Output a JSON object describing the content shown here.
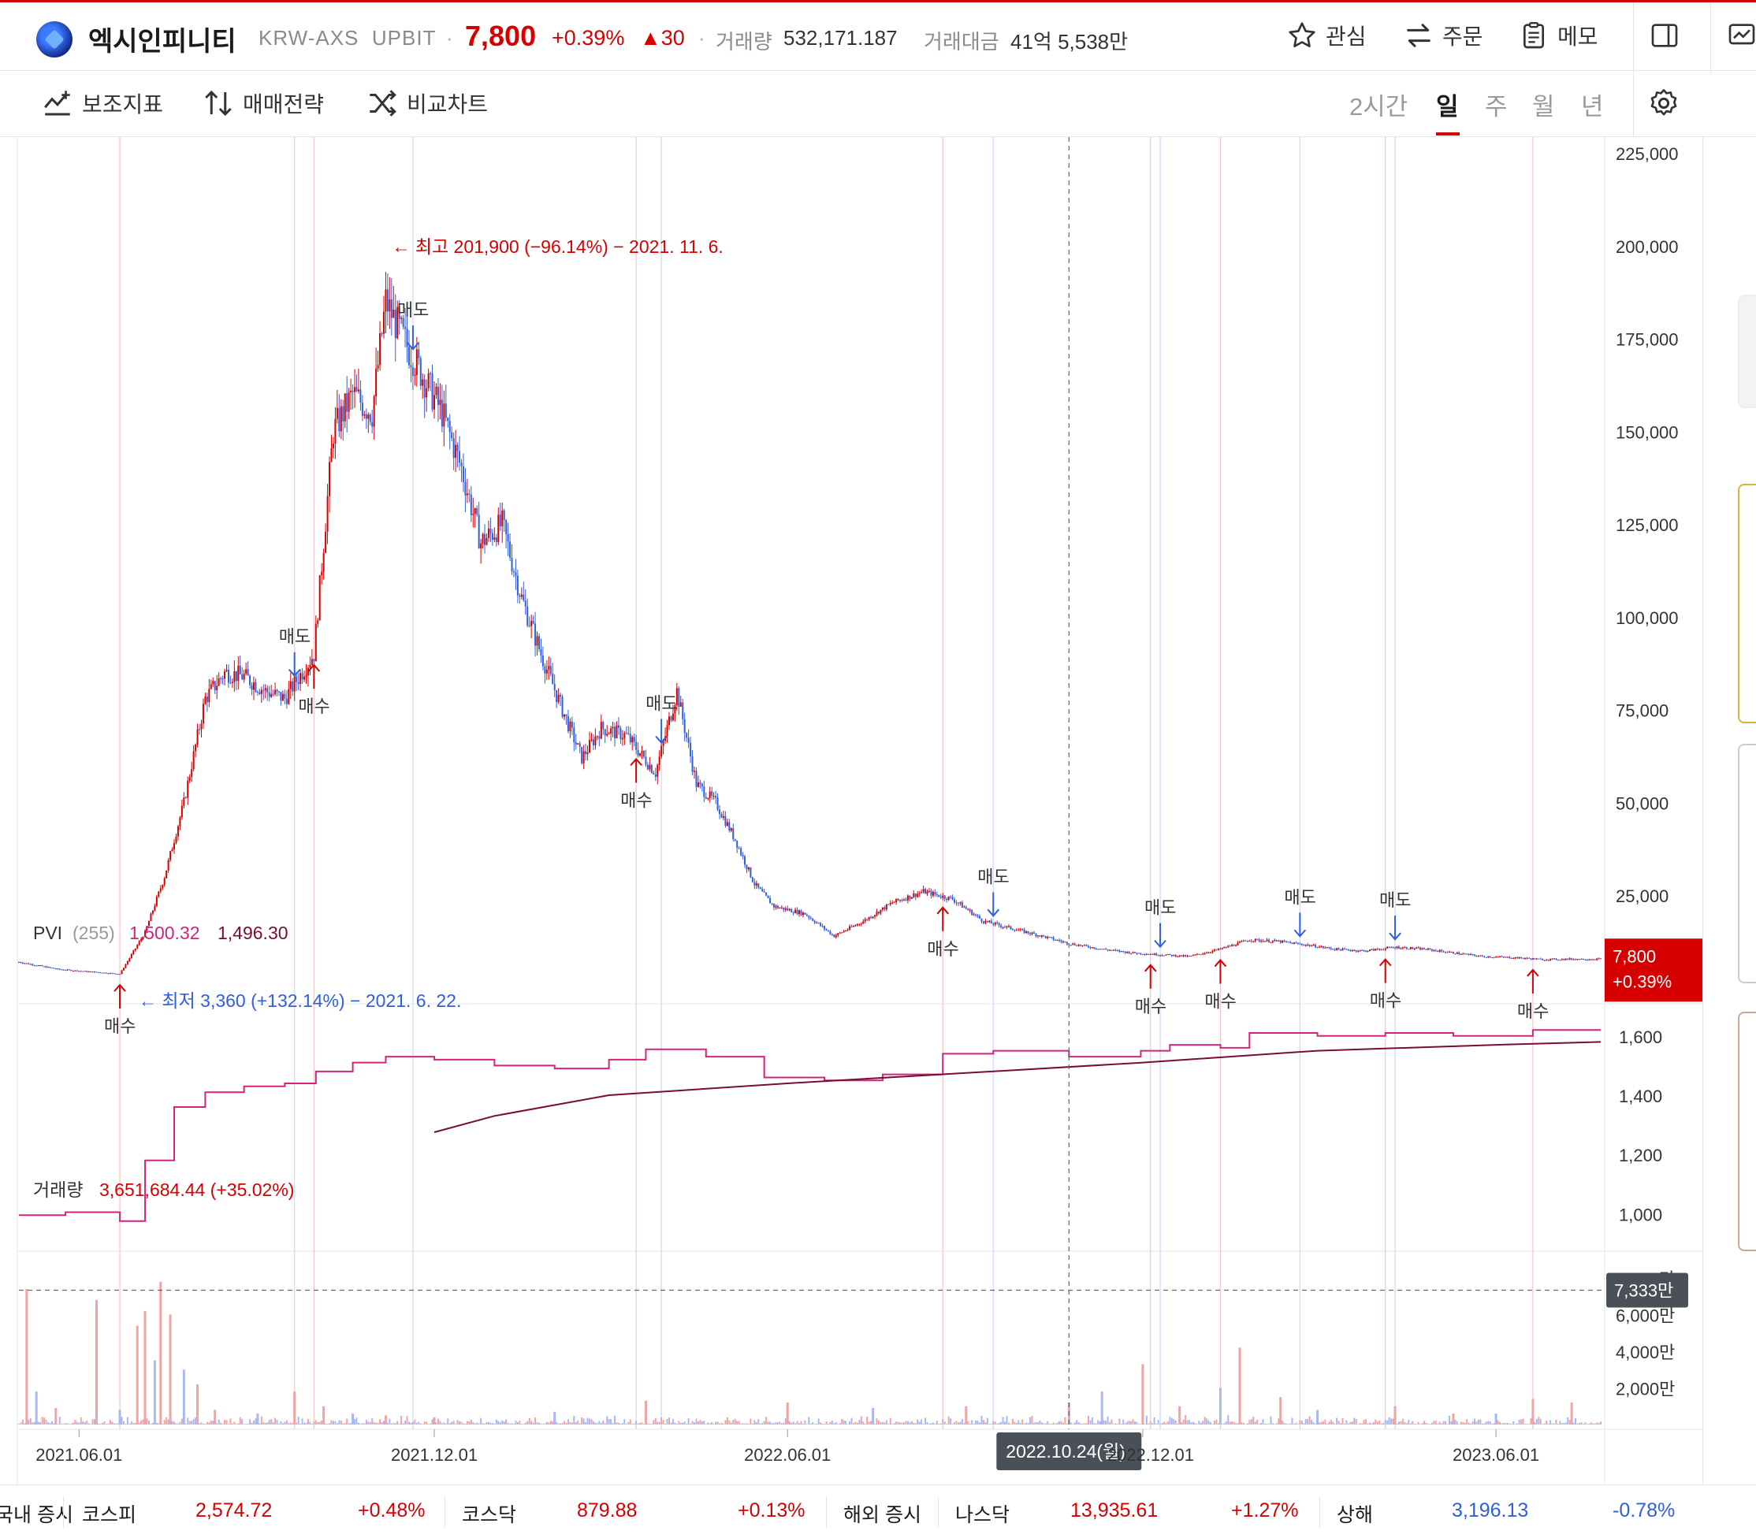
{
  "header": {
    "coin_name": "엑시인피니티",
    "pair": "KRW-AXS",
    "exchange": "UPBIT",
    "separator": "·",
    "price": "7,800",
    "change_pct": "+0.39%",
    "change_amount": "▲30",
    "volume_label": "거래량",
    "volume_value": "532,171.187",
    "value_label": "거래대금",
    "value_value": "41억 5,538만",
    "buttons": {
      "watch": "관심",
      "order": "주문",
      "memo": "메모"
    }
  },
  "toolbar": {
    "indicators": "보조지표",
    "strategy": "매매전략",
    "compare": "비교차트",
    "periods": [
      "2시간",
      "일",
      "주",
      "월",
      "년"
    ],
    "active_period": "일"
  },
  "colors": {
    "up": "#d60000",
    "down": "#2f5fe0",
    "pvi": "#d4237a",
    "pvi_signal": "#7a0a3a",
    "accent": "#d60000"
  },
  "chart_data": [
    {
      "type": "candlestick",
      "panel": "price",
      "x_ticks": [
        "2021.06.01",
        "2021.12.01",
        "2022.06.01",
        "2022.12.01",
        "2023.06.01"
      ],
      "y_ticks": [
        "225,000",
        "200,000",
        "175,000",
        "150,000",
        "125,000",
        "100,000",
        "75,000",
        "50,000",
        "25,000"
      ],
      "ylim": [
        0,
        225000
      ],
      "x": [
        "2021-05-01",
        "2021-05-22",
        "2021-06-22",
        "2021-07-05",
        "2021-07-15",
        "2021-07-25",
        "2021-08-05",
        "2021-08-15",
        "2021-08-25",
        "2021-09-05",
        "2021-09-15",
        "2021-09-30",
        "2021-10-10",
        "2021-10-20",
        "2021-10-30",
        "2021-11-06",
        "2021-11-15",
        "2021-11-25",
        "2021-12-05",
        "2021-12-15",
        "2021-12-25",
        "2022-01-05",
        "2022-01-15",
        "2022-01-25",
        "2022-02-05",
        "2022-02-15",
        "2022-02-25",
        "2022-03-10",
        "2022-03-25",
        "2022-04-05",
        "2022-04-15",
        "2022-04-25",
        "2022-05-05",
        "2022-05-15",
        "2022-05-25",
        "2022-06-10",
        "2022-06-25",
        "2022-07-10",
        "2022-07-25",
        "2022-08-10",
        "2022-08-25",
        "2022-09-10",
        "2022-09-25",
        "2022-10-10",
        "2022-10-24",
        "2022-11-10",
        "2022-11-25",
        "2022-12-10",
        "2022-12-25",
        "2023-01-10",
        "2023-01-25",
        "2023-02-10",
        "2023-02-25",
        "2023-03-10",
        "2023-03-25",
        "2023-04-10",
        "2023-04-25",
        "2023-05-10",
        "2023-05-25",
        "2023-06-10",
        "2023-06-25",
        "2023-07-10",
        "2023-07-25"
      ],
      "close": [
        7000,
        5000,
        3800,
        15000,
        30000,
        50000,
        78000,
        85000,
        84000,
        80000,
        78000,
        90000,
        150000,
        160000,
        155000,
        185000,
        175000,
        165000,
        155000,
        140000,
        120000,
        125000,
        105000,
        90000,
        75000,
        62000,
        70000,
        68000,
        58000,
        80000,
        55000,
        50000,
        40000,
        28000,
        22000,
        20000,
        14000,
        18000,
        23000,
        26000,
        24000,
        18000,
        16000,
        14000,
        12000,
        10500,
        9500,
        9000,
        8500,
        10500,
        13000,
        12500,
        11500,
        10500,
        10000,
        11000,
        10500,
        9500,
        8500,
        8200,
        7700,
        7800,
        7800
      ],
      "annotations": [
        {
          "text": "← 최고 201,900 (−96.14%) − 2021. 11. 6.",
          "x": "2021-11-06",
          "y": 201900,
          "color": "up"
        },
        {
          "text": "← 최저 3,360 (+132.14%) − 2021. 6. 22.",
          "x": "2021-06-22",
          "y": 3360,
          "color": "down"
        }
      ],
      "signals": [
        {
          "type": "매수",
          "x": "2021-06-22"
        },
        {
          "type": "매도",
          "x": "2021-09-20"
        },
        {
          "type": "매수",
          "x": "2021-09-30"
        },
        {
          "type": "매도",
          "x": "2021-11-20"
        },
        {
          "type": "매수",
          "x": "2022-03-15"
        },
        {
          "type": "매도",
          "x": "2022-03-28"
        },
        {
          "type": "매수",
          "x": "2022-08-20"
        },
        {
          "type": "매도",
          "x": "2022-09-15"
        },
        {
          "type": "매수",
          "x": "2022-12-05"
        },
        {
          "type": "매도",
          "x": "2022-12-10"
        },
        {
          "type": "매수",
          "x": "2023-01-10"
        },
        {
          "type": "매도",
          "x": "2023-02-20"
        },
        {
          "type": "매수",
          "x": "2023-04-05"
        },
        {
          "type": "매도",
          "x": "2023-04-10"
        },
        {
          "type": "매수",
          "x": "2023-06-20"
        }
      ],
      "last_price_label": "7,800",
      "last_change_label": "+0.39%",
      "crosshair_x_label": "2022.10.24(월)"
    },
    {
      "type": "line",
      "panel": "pvi",
      "title": "PVI",
      "param": "(255)",
      "value1": "1,500.32",
      "value2": "1,496.30",
      "y_ticks": [
        "1,600",
        "1,400",
        "1,200",
        "1,000"
      ],
      "ylim": [
        900,
        1650
      ],
      "series": [
        {
          "name": "PVI",
          "x": [
            "2021-05-01",
            "2021-05-25",
            "2021-06-22",
            "2021-07-05",
            "2021-07-20",
            "2021-08-05",
            "2021-08-25",
            "2021-09-15",
            "2021-10-01",
            "2021-10-20",
            "2021-11-06",
            "2021-12-01",
            "2022-01-01",
            "2022-02-01",
            "2022-03-01",
            "2022-03-20",
            "2022-04-20",
            "2022-05-20",
            "2022-06-20",
            "2022-07-20",
            "2022-08-20",
            "2022-09-15",
            "2022-10-24",
            "2022-11-30",
            "2022-12-15",
            "2023-01-10",
            "2023-01-25",
            "2023-03-01",
            "2023-04-05",
            "2023-05-10",
            "2023-06-20",
            "2023-07-25"
          ],
          "y": [
            995,
            1005,
            975,
            1180,
            1360,
            1410,
            1430,
            1440,
            1480,
            1510,
            1530,
            1520,
            1500,
            1490,
            1520,
            1555,
            1530,
            1460,
            1450,
            1470,
            1540,
            1550,
            1530,
            1550,
            1570,
            1560,
            1610,
            1600,
            1610,
            1600,
            1620,
            1620
          ]
        },
        {
          "name": "PVI signal",
          "x": [
            "2021-12-01",
            "2022-01-01",
            "2022-03-01",
            "2022-06-01",
            "2022-09-01",
            "2022-12-01",
            "2023-03-01",
            "2023-06-01",
            "2023-07-25"
          ],
          "y": [
            1275,
            1330,
            1400,
            1440,
            1475,
            1510,
            1550,
            1570,
            1580
          ]
        }
      ]
    },
    {
      "type": "bar",
      "panel": "volume",
      "title": "거래량",
      "value": "3,651,684.44 (+35.02%)",
      "y_ticks": [
        "8,000만",
        "6,000만",
        "4,000만",
        "2,000만"
      ],
      "ylim": [
        0,
        80000000
      ],
      "current_level_label": "7,333만",
      "current_level": 73330000,
      "x": [
        "2021-05-05",
        "2021-05-10",
        "2021-05-20",
        "2021-06-10",
        "2021-06-22",
        "2021-07-01",
        "2021-07-05",
        "2021-07-10",
        "2021-07-13",
        "2021-07-18",
        "2021-07-25",
        "2021-08-01",
        "2021-08-10",
        "2021-09-01",
        "2021-09-20",
        "2021-10-05",
        "2021-10-20",
        "2021-11-06",
        "2021-12-01",
        "2022-02-01",
        "2022-03-20",
        "2022-06-01",
        "2022-07-15",
        "2022-09-01",
        "2022-10-24",
        "2022-11-10",
        "2022-12-01",
        "2022-12-20",
        "2023-01-10",
        "2023-01-20",
        "2023-02-10",
        "2023-03-01",
        "2023-04-10",
        "2023-05-10",
        "2023-06-01",
        "2023-06-20",
        "2023-07-10"
      ],
      "values": [
        74000000,
        18000000,
        9000000,
        68000000,
        8000000,
        54000000,
        62000000,
        35000000,
        78000000,
        60000000,
        30000000,
        22000000,
        8000000,
        6000000,
        18000000,
        10000000,
        6000000,
        5000000,
        4000000,
        7000000,
        13000000,
        12000000,
        9000000,
        10000000,
        12000000,
        18000000,
        33000000,
        10000000,
        20000000,
        42000000,
        15000000,
        8000000,
        10000000,
        6000000,
        6000000,
        14000000,
        12000000
      ]
    }
  ],
  "market_bar": [
    {
      "name": "코스피",
      "value": "2,574.72",
      "change": "+0.48%",
      "dir": "up"
    },
    {
      "name": "코스닥",
      "value": "879.88",
      "change": "+0.13%",
      "dir": "up"
    },
    {
      "name": "나스닥",
      "value": "13,935.61",
      "change": "+1.27%",
      "dir": "up"
    },
    {
      "name": "상해",
      "value": "3,196.13",
      "change": "-0.78%",
      "dir": "down"
    }
  ],
  "market_labels": {
    "domestic": "국내 증시",
    "overseas": "해외 증시"
  }
}
